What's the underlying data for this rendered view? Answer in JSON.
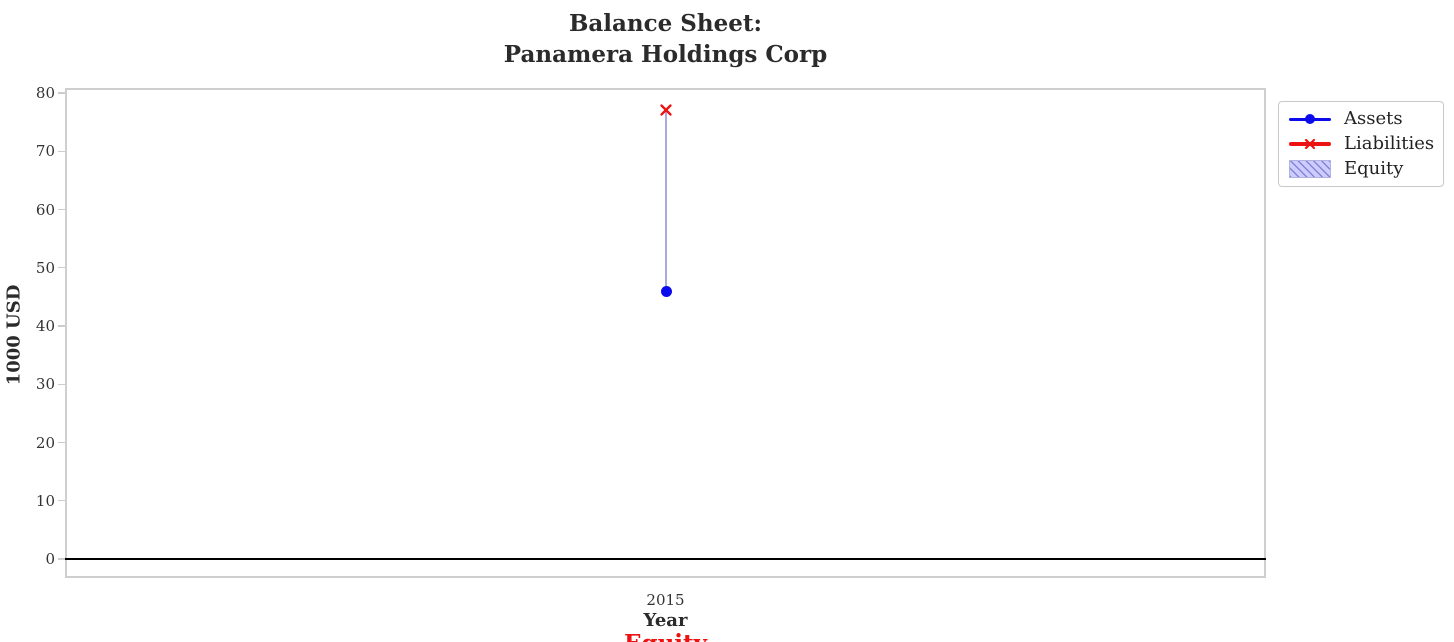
{
  "chart_data": {
    "type": "line",
    "title": "Balance Sheet: Panamera Holdings Corp",
    "title_lines": [
      "Balance Sheet:",
      "Panamera Holdings Corp"
    ],
    "xlabel": "Year",
    "ylabel": "1000 USD",
    "x": [
      2015
    ],
    "xtick_labels": [
      "2015"
    ],
    "yticks": [
      0,
      10,
      20,
      30,
      40,
      50,
      60,
      70,
      80
    ],
    "ylim": [
      -3,
      81
    ],
    "grid": true,
    "legend_position": "outside-right-top",
    "zero_line_y": 0,
    "series": [
      {
        "name": "Assets",
        "type": "line",
        "marker": "circle",
        "color": "#0b0bee",
        "values": [
          46
        ]
      },
      {
        "name": "Liabilities",
        "type": "line",
        "marker": "x",
        "color": "#ee1111",
        "values": [
          77
        ]
      },
      {
        "name": "Equity",
        "type": "bar",
        "color": "#ccccff",
        "hatch": "///",
        "bar_color": "#a9a9dd",
        "values": [
          -31
        ],
        "bar_span": {
          "from": 46,
          "to": 77
        }
      }
    ],
    "annotations": [
      {
        "text": "Equity",
        "color": "#ee1111",
        "position": "bottom-center-clipped"
      }
    ]
  }
}
